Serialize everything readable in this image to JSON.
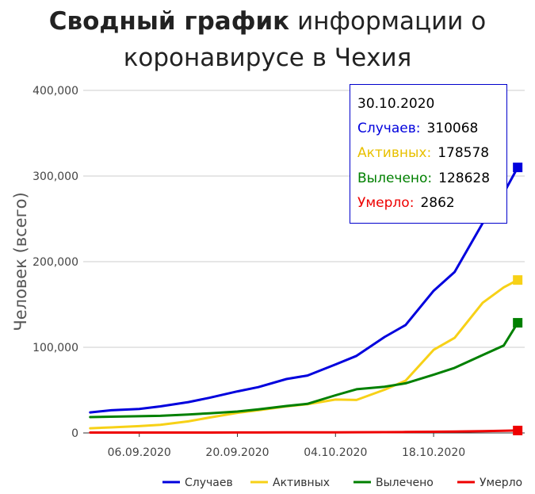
{
  "title": {
    "bold": "Сводный график",
    "rest_line1": "информации о",
    "line2": "коронавирусе в Чехия"
  },
  "chart_data": {
    "type": "line",
    "ylabel": "Человек (всего)",
    "xlabel": "",
    "ylim": [
      0,
      400000
    ],
    "yticks": [
      "0",
      "100,000",
      "200,000",
      "300,000",
      "400,000"
    ],
    "xticks": [
      "06.09.2020",
      "20.09.2020",
      "04.10.2020",
      "18.10.2020"
    ],
    "xtick_dates": [
      "2020-09-06",
      "2020-09-20",
      "2020-10-04",
      "2020-10-18"
    ],
    "legend_position": "bottom-right",
    "dates": [
      "2020-08-30",
      "2020-09-02",
      "2020-09-06",
      "2020-09-09",
      "2020-09-13",
      "2020-09-16",
      "2020-09-20",
      "2020-09-23",
      "2020-09-27",
      "2020-09-30",
      "2020-10-04",
      "2020-10-07",
      "2020-10-11",
      "2020-10-14",
      "2020-10-18",
      "2020-10-21",
      "2020-10-25",
      "2020-10-28",
      "2020-10-30"
    ],
    "series": [
      {
        "name": "Случаев",
        "color": "#0000dd",
        "values": [
          24000,
          26500,
          28000,
          31000,
          36000,
          41000,
          48500,
          53500,
          63000,
          67000,
          80000,
          90000,
          112000,
          126000,
          166000,
          188000,
          245000,
          280000,
          310068
        ]
      },
      {
        "name": "Активных",
        "color": "#f7d117",
        "values": [
          5500,
          6500,
          8000,
          9500,
          13500,
          18000,
          23500,
          26500,
          31000,
          33500,
          39000,
          38500,
          50500,
          61000,
          97000,
          111000,
          152000,
          170000,
          178578
        ]
      },
      {
        "name": "Вылечено",
        "color": "#008000",
        "values": [
          18500,
          19000,
          19500,
          20000,
          21500,
          23000,
          25000,
          27500,
          31500,
          34000,
          44000,
          51000,
          54000,
          58000,
          68000,
          76000,
          91000,
          102000,
          128628
        ]
      },
      {
        "name": "Умерло",
        "color": "#ee0000",
        "values": [
          430,
          430,
          440,
          450,
          470,
          500,
          530,
          580,
          640,
          700,
          770,
          860,
          970,
          1100,
          1350,
          1600,
          2100,
          2550,
          2862
        ]
      }
    ]
  },
  "tooltip": {
    "date": "30.10.2020",
    "rows": [
      {
        "label": "Случаев:",
        "value": "310068",
        "color": "#0000dd"
      },
      {
        "label": "Активных:",
        "value": "178578",
        "color": "#f7d117"
      },
      {
        "label": "Вылечено:",
        "value": "128628",
        "color": "#008000"
      },
      {
        "label": "Умерло:",
        "value": "2862",
        "color": "#ee0000"
      }
    ]
  }
}
